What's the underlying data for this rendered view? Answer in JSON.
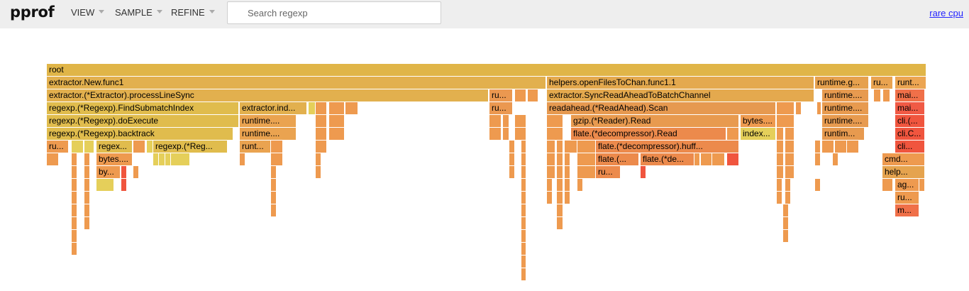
{
  "header": {
    "logo": "pprof",
    "menus": [
      {
        "id": "view",
        "label": "VIEW"
      },
      {
        "id": "sample",
        "label": "SAMPLE"
      },
      {
        "id": "refine",
        "label": "REFINE"
      }
    ],
    "search": {
      "placeholder": "Search regexp",
      "value": ""
    },
    "profile_link": "rare cpu"
  },
  "colors": {
    "header_bg": "#eeeeee",
    "link": "#2424ff",
    "frame_yellow": "#e1b945",
    "frame_orange": "#ee9a4f",
    "frame_red": "#f0553e"
  },
  "flamegraph": {
    "frames": [
      {
        "l": "root",
        "d": 0,
        "s": 0,
        "w": 1240,
        "c": "#e0b548"
      },
      {
        "l": "extractor.New.func1",
        "d": 1,
        "s": 0,
        "w": 704,
        "c": "#e2b04e"
      },
      {
        "l": "helpers.openFilesToChan.func1.1",
        "d": 1,
        "s": 705,
        "w": 377,
        "c": "#e4a94e"
      },
      {
        "l": "runtime.g...",
        "d": 1,
        "s": 1083,
        "w": 76,
        "c": "#e6a14e"
      },
      {
        "l": "ru...",
        "d": 1,
        "s": 1162,
        "w": 31,
        "c": "#e9a350"
      },
      {
        "l": "runt...",
        "d": 1,
        "s": 1196,
        "w": 44,
        "c": "#eca552"
      },
      {
        "l": "extractor.(*Extractor).processLineSync",
        "d": 2,
        "s": 0,
        "w": 623,
        "c": "#e2b04e"
      },
      {
        "l": "ru...",
        "d": 2,
        "s": 624,
        "w": 33,
        "c": "#eb9850"
      },
      {
        "l": "",
        "d": 2,
        "s": 660,
        "w": 16,
        "c": "#ee9a4f"
      },
      {
        "l": "",
        "d": 2,
        "s": 678,
        "w": 15,
        "c": "#ee9a4f"
      },
      {
        "l": "extractor.SyncReadAheadToBatchChannel",
        "d": 2,
        "s": 705,
        "w": 377,
        "c": "#e4a94e"
      },
      {
        "l": "runtime....",
        "d": 2,
        "s": 1093,
        "w": 66,
        "c": "#e79a4f"
      },
      {
        "l": "",
        "d": 2,
        "s": 1166,
        "w": 10,
        "c": "#ee9a4f"
      },
      {
        "l": "",
        "d": 2,
        "s": 1179,
        "w": 10,
        "c": "#ee9a4f"
      },
      {
        "l": "mai...",
        "d": 2,
        "s": 1196,
        "w": 42,
        "c": "#f07049"
      },
      {
        "l": "regexp.(*Regexp).FindSubmatchIndex",
        "d": 3,
        "s": 0,
        "w": 271,
        "c": "#e0bc4d"
      },
      {
        "l": "extractor.ind...",
        "d": 3,
        "s": 272,
        "w": 95,
        "c": "#e2b04e"
      },
      {
        "l": "",
        "d": 3,
        "s": 369,
        "w": 10,
        "c": "#e5cf5a"
      },
      {
        "l": "",
        "d": 3,
        "s": 379,
        "w": 16,
        "c": "#ee9a4f"
      },
      {
        "l": "",
        "d": 3,
        "s": 398,
        "w": 22,
        "c": "#ee9a4f"
      },
      {
        "l": "",
        "d": 3,
        "s": 421,
        "w": 18,
        "c": "#ee9a4f"
      },
      {
        "l": "ru...",
        "d": 3,
        "s": 624,
        "w": 33,
        "c": "#eb9850"
      },
      {
        "l": "readahead.(*ReadAhead).Scan",
        "d": 3,
        "s": 705,
        "w": 323,
        "c": "#e69950"
      },
      {
        "l": "",
        "d": 3,
        "s": 1029,
        "w": 25,
        "c": "#ee9a4f"
      },
      {
        "l": "",
        "d": 3,
        "s": 1056,
        "w": 8,
        "c": "#ee9a4f"
      },
      {
        "l": "",
        "d": 3,
        "s": 1086,
        "w": 6,
        "c": "#ee9a4f"
      },
      {
        "l": "runtime....",
        "d": 3,
        "s": 1093,
        "w": 66,
        "c": "#e79a4f"
      },
      {
        "l": "mai...",
        "d": 3,
        "s": 1196,
        "w": 42,
        "c": "#f05a45"
      },
      {
        "l": "regexp.(*Regexp).doExecute",
        "d": 4,
        "s": 0,
        "w": 271,
        "c": "#e0bc4d"
      },
      {
        "l": "runtime....",
        "d": 4,
        "s": 272,
        "w": 80,
        "c": "#eaa350"
      },
      {
        "l": "",
        "d": 4,
        "s": 379,
        "w": 16,
        "c": "#ee9a4f"
      },
      {
        "l": "",
        "d": 4,
        "s": 398,
        "w": 22,
        "c": "#ee9a4f"
      },
      {
        "l": "",
        "d": 4,
        "s": 624,
        "w": 17,
        "c": "#ee9a4f"
      },
      {
        "l": "",
        "d": 4,
        "s": 643,
        "w": 9,
        "c": "#ee9a4f"
      },
      {
        "l": "",
        "d": 4,
        "s": 660,
        "w": 16,
        "c": "#ee9a4f"
      },
      {
        "l": "",
        "d": 4,
        "s": 705,
        "w": 23,
        "c": "#ee9a4f"
      },
      {
        "l": "gzip.(*Reader).Read",
        "d": 4,
        "s": 739,
        "w": 237,
        "c": "#e89a4f"
      },
      {
        "l": "bytes....",
        "d": 4,
        "s": 978,
        "w": 50,
        "c": "#ee9a4f"
      },
      {
        "l": "",
        "d": 4,
        "s": 1029,
        "w": 25,
        "c": "#ee9a4f"
      },
      {
        "l": "runtime....",
        "d": 4,
        "s": 1093,
        "w": 66,
        "c": "#e79a4f"
      },
      {
        "l": "cli.(...",
        "d": 4,
        "s": 1196,
        "w": 42,
        "c": "#f0553e"
      },
      {
        "l": "regexp.(*Regexp).backtrack",
        "d": 5,
        "s": 0,
        "w": 263,
        "c": "#e0bc4d"
      },
      {
        "l": "runtime....",
        "d": 5,
        "s": 272,
        "w": 80,
        "c": "#eaa350"
      },
      {
        "l": "",
        "d": 5,
        "s": 379,
        "w": 16,
        "c": "#ee9a4f"
      },
      {
        "l": "",
        "d": 5,
        "s": 398,
        "w": 22,
        "c": "#ee9a4f"
      },
      {
        "l": "",
        "d": 5,
        "s": 624,
        "w": 17,
        "c": "#ee9a4f"
      },
      {
        "l": "",
        "d": 5,
        "s": 643,
        "w": 9,
        "c": "#ee9a4f"
      },
      {
        "l": "",
        "d": 5,
        "s": 660,
        "w": 16,
        "c": "#ee9a4f"
      },
      {
        "l": "",
        "d": 5,
        "s": 705,
        "w": 23,
        "c": "#ee9a4f"
      },
      {
        "l": "flate.(*decompressor).Read",
        "d": 5,
        "s": 739,
        "w": 219,
        "c": "#ec8a4c"
      },
      {
        "l": "",
        "d": 5,
        "s": 959,
        "w": 17,
        "c": "#ee9a4f"
      },
      {
        "l": "index...",
        "d": 5,
        "s": 978,
        "w": 50,
        "c": "#e5cf5a"
      },
      {
        "l": "",
        "d": 5,
        "s": 1029,
        "w": 10,
        "c": "#ee9a4f"
      },
      {
        "l": "",
        "d": 5,
        "s": 1041,
        "w": 13,
        "c": "#ee9a4f"
      },
      {
        "l": "runtim...",
        "d": 5,
        "s": 1093,
        "w": 60,
        "c": "#e79a4f"
      },
      {
        "l": "cli.C...",
        "d": 5,
        "s": 1196,
        "w": 42,
        "c": "#f0553e"
      },
      {
        "l": "ru...",
        "d": 6,
        "s": 0,
        "w": 31,
        "c": "#ee9a4f"
      },
      {
        "l": "",
        "d": 6,
        "s": 35,
        "w": 17,
        "c": "#e5cf5a"
      },
      {
        "l": "",
        "d": 6,
        "s": 53,
        "w": 14,
        "c": "#e5cf5a"
      },
      {
        "l": "regex...",
        "d": 6,
        "s": 70,
        "w": 51,
        "c": "#e0bc4d"
      },
      {
        "l": "",
        "d": 6,
        "s": 122,
        "w": 17,
        "c": "#ee9a4f"
      },
      {
        "l": "",
        "d": 6,
        "s": 141,
        "w": 9,
        "c": "#e5cf5a"
      },
      {
        "l": "regexp.(*Reg...",
        "d": 6,
        "s": 150,
        "w": 105,
        "c": "#e0bc4d"
      },
      {
        "l": "runt...",
        "d": 6,
        "s": 272,
        "w": 44,
        "c": "#eaa350"
      },
      {
        "l": "",
        "d": 6,
        "s": 316,
        "w": 17,
        "c": "#ee9a4f"
      },
      {
        "l": "",
        "d": 6,
        "s": 379,
        "w": 16,
        "c": "#ee9a4f"
      },
      {
        "l": "",
        "d": 6,
        "s": 652,
        "w": 8,
        "c": "#ee9a4f"
      },
      {
        "l": "",
        "d": 6,
        "s": 669,
        "w": 7,
        "c": "#ee9a4f"
      },
      {
        "l": "",
        "d": 6,
        "s": 705,
        "w": 12,
        "c": "#ee9a4f"
      },
      {
        "l": "",
        "d": 6,
        "s": 719,
        "w": 9,
        "c": "#ee9a4f"
      },
      {
        "l": "",
        "d": 6,
        "s": 730,
        "w": 18,
        "c": "#ee9a4f"
      },
      {
        "l": "",
        "d": 6,
        "s": 748,
        "w": 26,
        "c": "#ee9a4f"
      },
      {
        "l": "flate.(*decompressor).huff...",
        "d": 6,
        "s": 774,
        "w": 202,
        "c": "#ec8a4c"
      },
      {
        "l": "",
        "d": 6,
        "s": 1029,
        "w": 10,
        "c": "#ee9a4f"
      },
      {
        "l": "",
        "d": 6,
        "s": 1041,
        "w": 13,
        "c": "#ee9a4f"
      },
      {
        "l": "",
        "d": 6,
        "s": 1083,
        "w": 8,
        "c": "#ee9a4f"
      },
      {
        "l": "",
        "d": 6,
        "s": 1093,
        "w": 17,
        "c": "#ee9a4f"
      },
      {
        "l": "",
        "d": 6,
        "s": 1111,
        "w": 17,
        "c": "#ee9a4f"
      },
      {
        "l": "",
        "d": 6,
        "s": 1128,
        "w": 17,
        "c": "#ee9a4f"
      },
      {
        "l": "cli...",
        "d": 6,
        "s": 1196,
        "w": 42,
        "c": "#f0553e"
      },
      {
        "l": "",
        "d": 7,
        "s": 0,
        "w": 17,
        "c": "#ee9a4f"
      },
      {
        "l": "",
        "d": 7,
        "s": 35,
        "w": 8,
        "c": "#ee9a4f"
      },
      {
        "l": "",
        "d": 7,
        "s": 53,
        "w": 8,
        "c": "#ee9a4f"
      },
      {
        "l": "bytes....",
        "d": 7,
        "s": 70,
        "w": 51,
        "c": "#ee9a4f"
      },
      {
        "l": "",
        "d": 7,
        "s": 150,
        "w": 8,
        "c": "#e5cf5a"
      },
      {
        "l": "",
        "d": 7,
        "s": 158,
        "w": 9,
        "c": "#e5cf5a"
      },
      {
        "l": "",
        "d": 7,
        "s": 167,
        "w": 8,
        "c": "#e5cf5a"
      },
      {
        "l": "",
        "d": 7,
        "s": 175,
        "w": 27,
        "c": "#e5cf5a"
      },
      {
        "l": "",
        "d": 7,
        "s": 272,
        "w": 8,
        "c": "#ee9a4f"
      },
      {
        "l": "",
        "d": 7,
        "s": 316,
        "w": 17,
        "c": "#ee9a4f"
      },
      {
        "l": "",
        "d": 7,
        "s": 379,
        "w": 8,
        "c": "#ee9a4f"
      },
      {
        "l": "",
        "d": 7,
        "s": 652,
        "w": 8,
        "c": "#ee9a4f"
      },
      {
        "l": "",
        "d": 7,
        "s": 669,
        "w": 7,
        "c": "#ee9a4f"
      },
      {
        "l": "",
        "d": 7,
        "s": 705,
        "w": 12,
        "c": "#ee9a4f"
      },
      {
        "l": "",
        "d": 7,
        "s": 719,
        "w": 9,
        "c": "#ee9a4f"
      },
      {
        "l": "",
        "d": 7,
        "s": 730,
        "w": 8,
        "c": "#ee9a4f"
      },
      {
        "l": "",
        "d": 7,
        "s": 748,
        "w": 26,
        "c": "#ee9a4f"
      },
      {
        "l": "flate.(...",
        "d": 7,
        "s": 774,
        "w": 61,
        "c": "#ec8a4c"
      },
      {
        "l": "flate.(*de...",
        "d": 7,
        "s": 837,
        "w": 76,
        "c": "#ec8a4c"
      },
      {
        "l": "",
        "d": 7,
        "s": 913,
        "w": 8,
        "c": "#ee9a4f"
      },
      {
        "l": "",
        "d": 7,
        "s": 922,
        "w": 16,
        "c": "#ee9a4f"
      },
      {
        "l": "",
        "d": 7,
        "s": 938,
        "w": 18,
        "c": "#ee9a4f"
      },
      {
        "l": "",
        "d": 7,
        "s": 959,
        "w": 17,
        "c": "#f0553e"
      },
      {
        "l": "",
        "d": 7,
        "s": 1029,
        "w": 10,
        "c": "#ee9a4f"
      },
      {
        "l": "",
        "d": 7,
        "s": 1041,
        "w": 13,
        "c": "#ee9a4f"
      },
      {
        "l": "",
        "d": 7,
        "s": 1083,
        "w": 8,
        "c": "#ee9a4f"
      },
      {
        "l": "",
        "d": 7,
        "s": 1108,
        "w": 8,
        "c": "#ee9a4f"
      },
      {
        "l": "cmd...",
        "d": 7,
        "s": 1178,
        "w": 60,
        "c": "#ee9a4f"
      },
      {
        "l": "",
        "d": 8,
        "s": 35,
        "w": 8,
        "c": "#ee9a4f"
      },
      {
        "l": "",
        "d": 8,
        "s": 53,
        "w": 8,
        "c": "#ee9a4f"
      },
      {
        "l": "by...",
        "d": 8,
        "s": 70,
        "w": 34,
        "c": "#ee9a4f"
      },
      {
        "l": "",
        "d": 8,
        "s": 105,
        "w": 8,
        "c": "#f0553e"
      },
      {
        "l": "",
        "d": 8,
        "s": 122,
        "w": 8,
        "c": "#ee9a4f"
      },
      {
        "l": "",
        "d": 8,
        "s": 316,
        "w": 8,
        "c": "#ee9a4f"
      },
      {
        "l": "",
        "d": 8,
        "s": 379,
        "w": 8,
        "c": "#ee9a4f"
      },
      {
        "l": "",
        "d": 8,
        "s": 652,
        "w": 8,
        "c": "#ee9a4f"
      },
      {
        "l": "",
        "d": 8,
        "s": 669,
        "w": 7,
        "c": "#ee9a4f"
      },
      {
        "l": "",
        "d": 8,
        "s": 705,
        "w": 12,
        "c": "#ee9a4f"
      },
      {
        "l": "",
        "d": 8,
        "s": 719,
        "w": 9,
        "c": "#ee9a4f"
      },
      {
        "l": "",
        "d": 8,
        "s": 730,
        "w": 8,
        "c": "#ee9a4f"
      },
      {
        "l": "",
        "d": 8,
        "s": 748,
        "w": 26,
        "c": "#ee9a4f"
      },
      {
        "l": "ru...",
        "d": 8,
        "s": 774,
        "w": 35,
        "c": "#ec8a4c"
      },
      {
        "l": "",
        "d": 8,
        "s": 837,
        "w": 8,
        "c": "#f0553e"
      },
      {
        "l": "",
        "d": 8,
        "s": 1029,
        "w": 10,
        "c": "#ee9a4f"
      },
      {
        "l": "",
        "d": 8,
        "s": 1041,
        "w": 13,
        "c": "#ee9a4f"
      },
      {
        "l": "help...",
        "d": 8,
        "s": 1178,
        "w": 60,
        "c": "#e5a34e"
      },
      {
        "l": "",
        "d": 9,
        "s": 35,
        "w": 8,
        "c": "#ee9a4f"
      },
      {
        "l": "",
        "d": 9,
        "s": 53,
        "w": 8,
        "c": "#ee9a4f"
      },
      {
        "l": "",
        "d": 9,
        "s": 70,
        "w": 25,
        "c": "#e5cf5a"
      },
      {
        "l": "",
        "d": 9,
        "s": 105,
        "w": 8,
        "c": "#f0553e"
      },
      {
        "l": "",
        "d": 9,
        "s": 316,
        "w": 8,
        "c": "#ee9a4f"
      },
      {
        "l": "",
        "d": 9,
        "s": 669,
        "w": 7,
        "c": "#ee9a4f"
      },
      {
        "l": "",
        "d": 9,
        "s": 705,
        "w": 8,
        "c": "#ee9a4f"
      },
      {
        "l": "",
        "d": 9,
        "s": 719,
        "w": 9,
        "c": "#ee9a4f"
      },
      {
        "l": "",
        "d": 9,
        "s": 730,
        "w": 8,
        "c": "#ee9a4f"
      },
      {
        "l": "",
        "d": 9,
        "s": 748,
        "w": 8,
        "c": "#ee9a4f"
      },
      {
        "l": "",
        "d": 9,
        "s": 1029,
        "w": 8,
        "c": "#ee9a4f"
      },
      {
        "l": "",
        "d": 9,
        "s": 1041,
        "w": 8,
        "c": "#ee9a4f"
      },
      {
        "l": "",
        "d": 9,
        "s": 1083,
        "w": 8,
        "c": "#ee9a4f"
      },
      {
        "l": "",
        "d": 9,
        "s": 1178,
        "w": 15,
        "c": "#ee9a4f"
      },
      {
        "l": "ag...",
        "d": 9,
        "s": 1196,
        "w": 34,
        "c": "#ee9a4f"
      },
      {
        "l": "",
        "d": 9,
        "s": 1230,
        "w": 8,
        "c": "#ee9a4f"
      },
      {
        "l": "",
        "d": 10,
        "s": 35,
        "w": 8,
        "c": "#ee9a4f"
      },
      {
        "l": "",
        "d": 10,
        "s": 53,
        "w": 8,
        "c": "#ee9a4f"
      },
      {
        "l": "",
        "d": 10,
        "s": 316,
        "w": 8,
        "c": "#ee9a4f"
      },
      {
        "l": "",
        "d": 10,
        "s": 669,
        "w": 7,
        "c": "#ee9a4f"
      },
      {
        "l": "",
        "d": 10,
        "s": 705,
        "w": 8,
        "c": "#ee9a4f"
      },
      {
        "l": "",
        "d": 10,
        "s": 719,
        "w": 9,
        "c": "#ee9a4f"
      },
      {
        "l": "",
        "d": 10,
        "s": 730,
        "w": 8,
        "c": "#ee9a4f"
      },
      {
        "l": "",
        "d": 10,
        "s": 1029,
        "w": 8,
        "c": "#ee9a4f"
      },
      {
        "l": "",
        "d": 10,
        "s": 1041,
        "w": 8,
        "c": "#ee9a4f"
      },
      {
        "l": "ru...",
        "d": 10,
        "s": 1196,
        "w": 34,
        "c": "#ee9a4f"
      },
      {
        "l": "",
        "d": 11,
        "s": 35,
        "w": 8,
        "c": "#ee9a4f"
      },
      {
        "l": "",
        "d": 11,
        "s": 53,
        "w": 8,
        "c": "#ee9a4f"
      },
      {
        "l": "",
        "d": 11,
        "s": 316,
        "w": 8,
        "c": "#ee9a4f"
      },
      {
        "l": "",
        "d": 11,
        "s": 669,
        "w": 7,
        "c": "#ee9a4f"
      },
      {
        "l": "",
        "d": 11,
        "s": 719,
        "w": 9,
        "c": "#ee9a4f"
      },
      {
        "l": "",
        "d": 11,
        "s": 1038,
        "w": 8,
        "c": "#ee9a4f"
      },
      {
        "l": "m...",
        "d": 11,
        "s": 1196,
        "w": 34,
        "c": "#f07049"
      },
      {
        "l": "",
        "d": 12,
        "s": 35,
        "w": 8,
        "c": "#ee9a4f"
      },
      {
        "l": "",
        "d": 12,
        "s": 53,
        "w": 8,
        "c": "#ee9a4f"
      },
      {
        "l": "",
        "d": 12,
        "s": 669,
        "w": 7,
        "c": "#ee9a4f"
      },
      {
        "l": "",
        "d": 12,
        "s": 719,
        "w": 9,
        "c": "#ee9a4f"
      },
      {
        "l": "",
        "d": 12,
        "s": 1038,
        "w": 8,
        "c": "#ee9a4f"
      },
      {
        "l": "",
        "d": 13,
        "s": 35,
        "w": 8,
        "c": "#ee9a4f"
      },
      {
        "l": "",
        "d": 13,
        "s": 669,
        "w": 7,
        "c": "#ee9a4f"
      },
      {
        "l": "",
        "d": 13,
        "s": 1038,
        "w": 8,
        "c": "#ee9a4f"
      },
      {
        "l": "",
        "d": 14,
        "s": 35,
        "w": 8,
        "c": "#ee9a4f"
      },
      {
        "l": "",
        "d": 14,
        "s": 669,
        "w": 7,
        "c": "#ee9a4f"
      },
      {
        "l": "",
        "d": 15,
        "s": 669,
        "w": 7,
        "c": "#ee9a4f"
      },
      {
        "l": "",
        "d": 16,
        "s": 669,
        "w": 7,
        "c": "#ee9a4f"
      }
    ]
  }
}
